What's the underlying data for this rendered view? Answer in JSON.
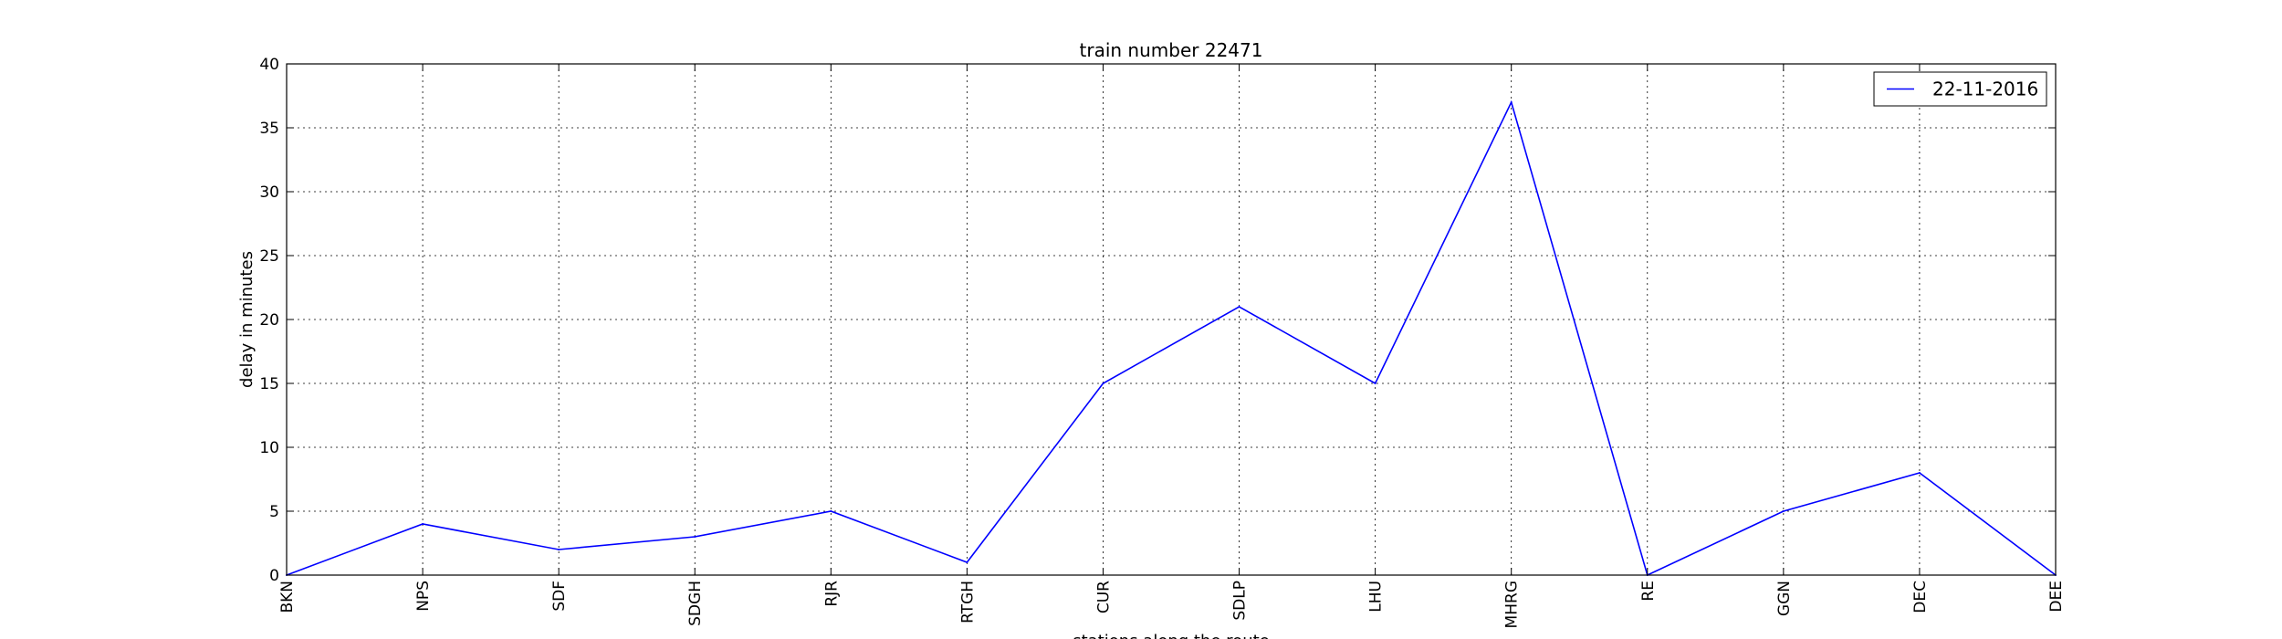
{
  "chart_data": {
    "type": "line",
    "title": "train number 22471",
    "xlabel": "stations along the route",
    "ylabel": "delay in minutes",
    "categories": [
      "BKN",
      "NPS",
      "SDF",
      "SDGH",
      "RJR",
      "RTGH",
      "CUR",
      "SDLP",
      "LHU",
      "MHRG",
      "RE",
      "GGN",
      "DEC",
      "DEE"
    ],
    "series": [
      {
        "name": "22-11-2016",
        "values": [
          0,
          4,
          2,
          3,
          5,
          1,
          15,
          21,
          15,
          37,
          0,
          5,
          8,
          0
        ],
        "color": "#0000ff"
      }
    ],
    "ylim": [
      0,
      40
    ],
    "yticks": [
      0,
      5,
      10,
      15,
      20,
      25,
      30,
      35,
      40
    ],
    "grid": true,
    "legend_position": "top-right"
  }
}
